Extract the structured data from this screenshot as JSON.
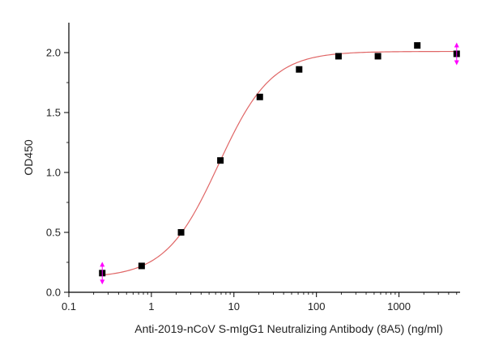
{
  "chart_data": {
    "type": "scatter",
    "title": "",
    "xlabel": "Anti-2019-nCoV S-mIgG1 Neutralizing Antibody (8A5) (ng/ml)",
    "ylabel": "OD450",
    "x_scale": "log",
    "xlim": [
      0.1,
      5500
    ],
    "ylim": [
      0,
      2.25
    ],
    "x_ticks": [
      {
        "value": 0.1,
        "label": "0.1"
      },
      {
        "value": 1,
        "label": "1"
      },
      {
        "value": 10,
        "label": "10"
      },
      {
        "value": 100,
        "label": "100"
      },
      {
        "value": 1000,
        "label": "1000"
      }
    ],
    "y_ticks": [
      {
        "value": 0,
        "label": "0.0"
      },
      {
        "value": 0.5,
        "label": "0.5"
      },
      {
        "value": 1.0,
        "label": "1.0"
      },
      {
        "value": 1.5,
        "label": "1.5"
      },
      {
        "value": 2.0,
        "label": "2.0"
      }
    ],
    "grid": false,
    "legend": "none",
    "series": [
      {
        "x": [
          0.254,
          0.762,
          2.29,
          6.86,
          20.6,
          61.7,
          185,
          556,
          1667,
          5000
        ],
        "y": [
          0.16,
          0.22,
          0.5,
          1.1,
          1.63,
          1.86,
          1.97,
          1.97,
          2.06,
          1.99
        ],
        "marker": "square",
        "color": "#000000",
        "error_bar_color": "#ff00ff"
      }
    ],
    "fit_curve": {
      "model": "4PL",
      "bottom": 0.12,
      "top": 2.01,
      "ec50": 6.5,
      "hill": 1.35,
      "color": "#e06666"
    }
  }
}
